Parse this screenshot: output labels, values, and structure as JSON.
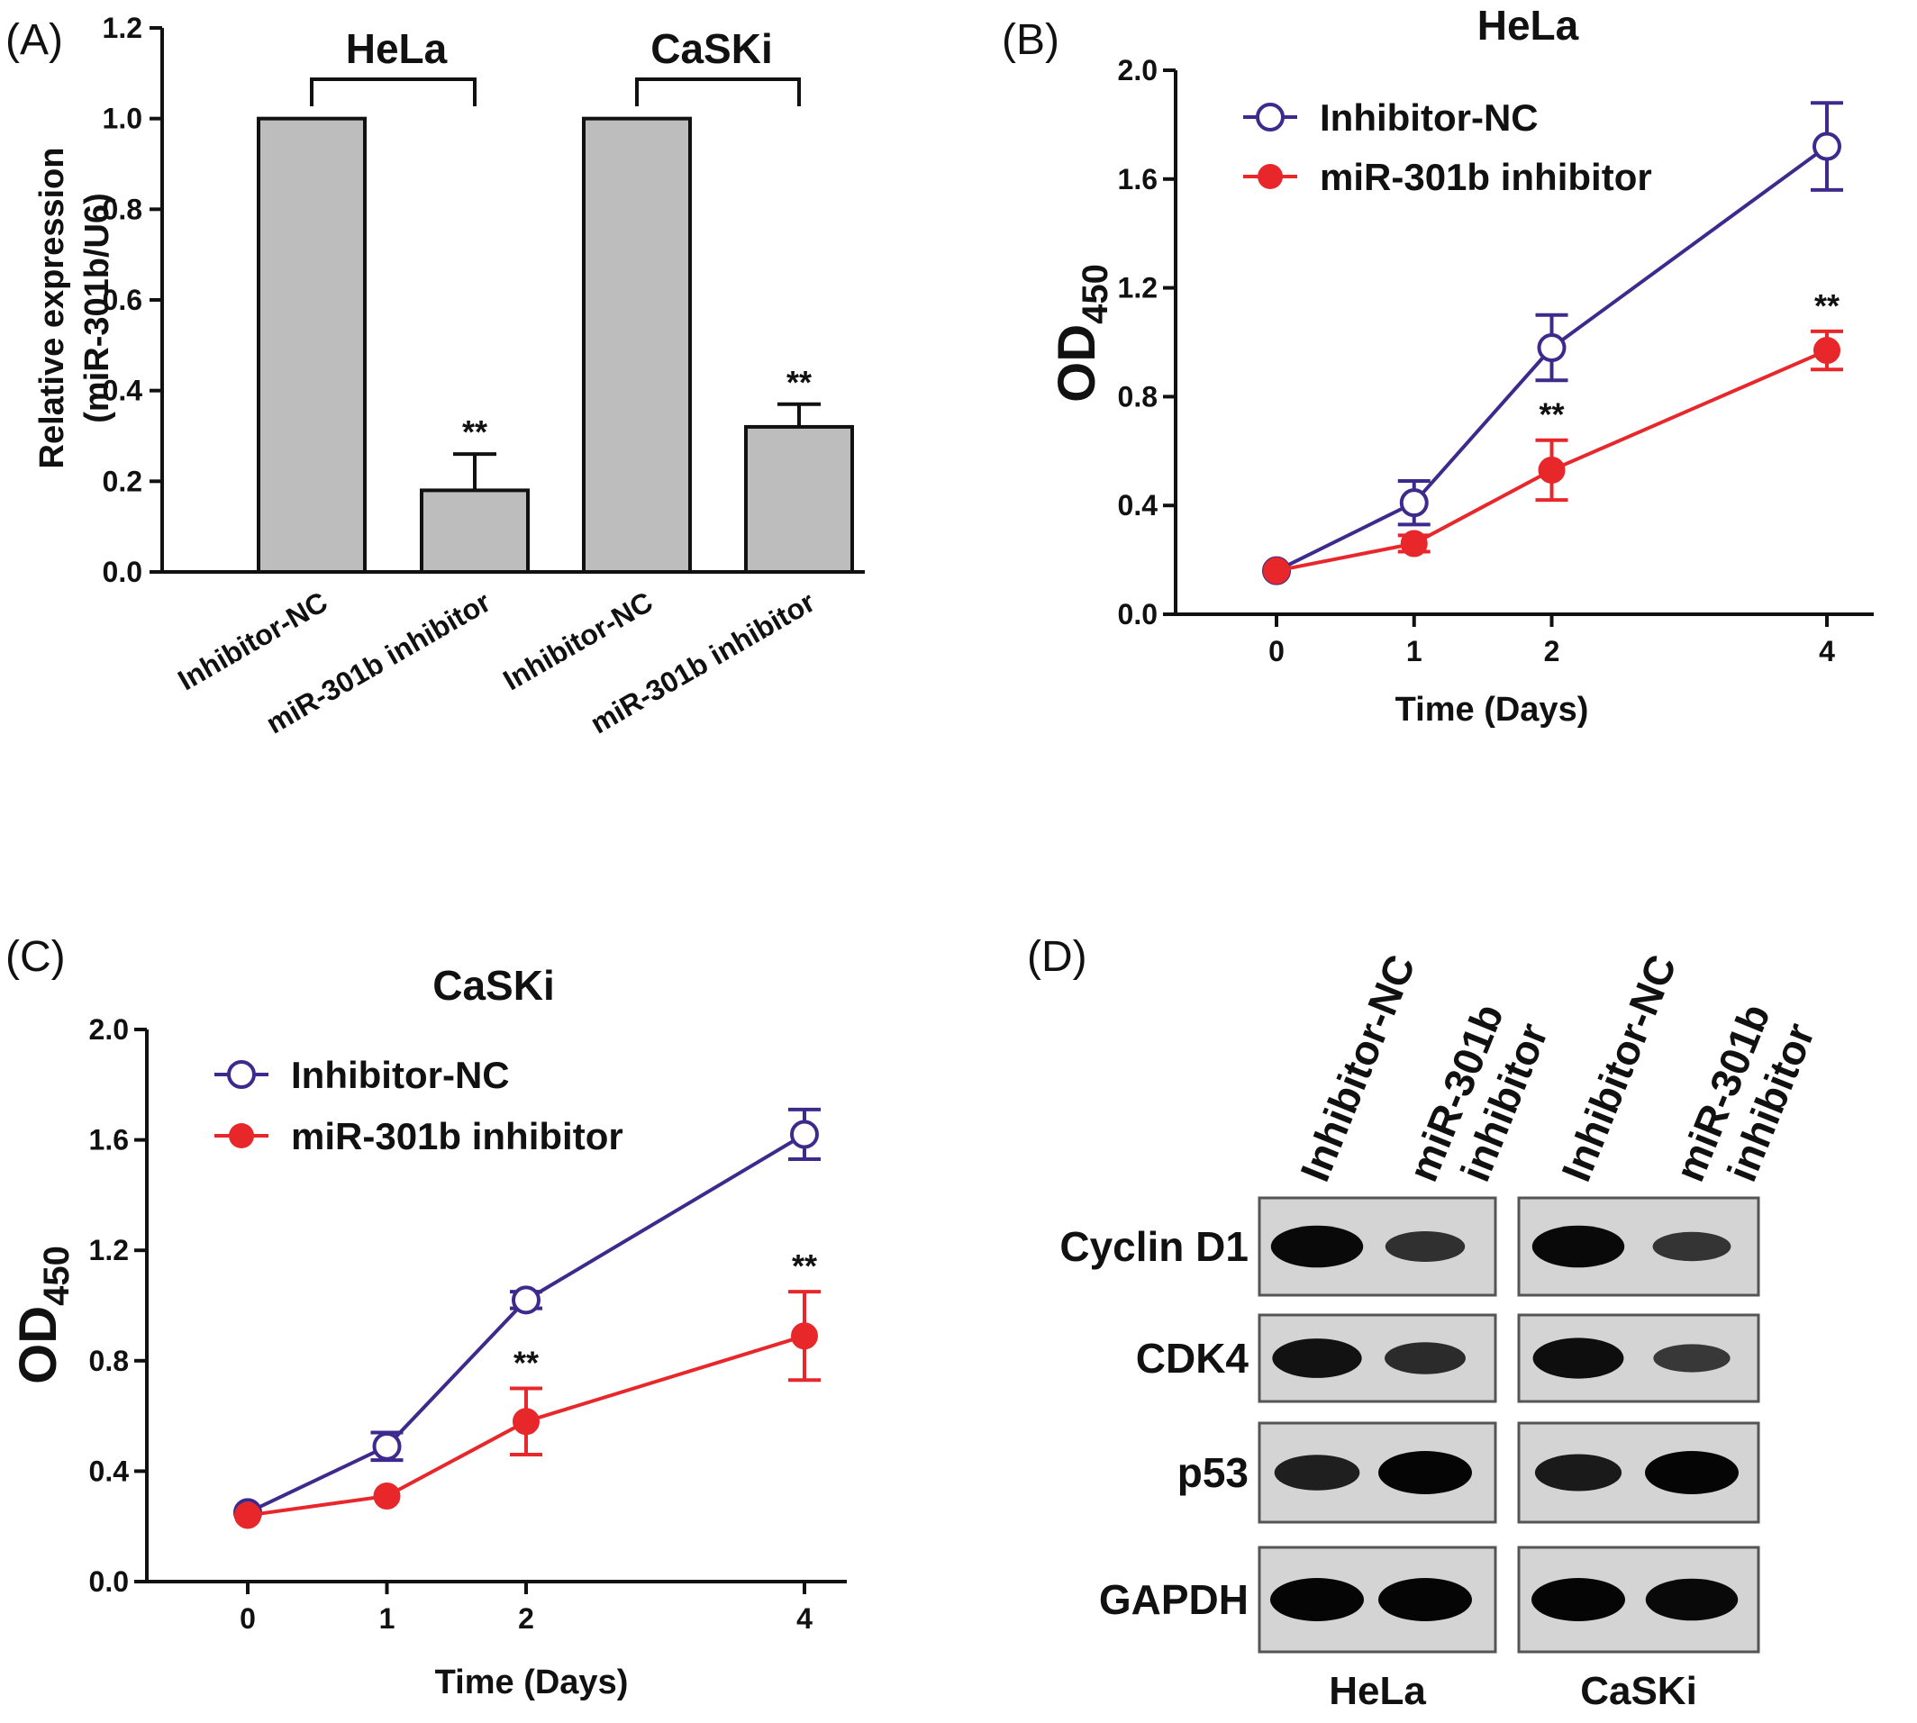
{
  "panels": {
    "a": "(A)",
    "b": "(B)",
    "c": "(C)",
    "d": "(D)"
  },
  "colors": {
    "bar_fill": "#bdbdbd",
    "nc_line": "#3d2a8c",
    "inhibitor_line": "#e8272b",
    "axis": "#111111"
  },
  "chart_data": [
    {
      "id": "A",
      "type": "bar",
      "title": "",
      "ylabel_line1": "Relative expression",
      "ylabel_line2": "(miR-301b/U6)",
      "ylim": [
        0,
        1.2
      ],
      "yticks": [
        "0.0",
        "0.2",
        "0.4",
        "0.6",
        "0.8",
        "1.0",
        "1.2"
      ],
      "categories": [
        "Inhibitor-NC",
        "miR-301b inhibitor",
        "Inhibitor-NC",
        "miR-301b inhibitor"
      ],
      "values": [
        1.0,
        0.18,
        1.0,
        0.32
      ],
      "errors": [
        0,
        0.08,
        0,
        0.05
      ],
      "significance": [
        "",
        "**",
        "",
        "**"
      ],
      "groups": [
        {
          "name": "HeLa",
          "members": [
            0,
            1
          ]
        },
        {
          "name": "CaSKi",
          "members": [
            2,
            3
          ]
        }
      ],
      "grid": false
    },
    {
      "id": "B",
      "type": "line",
      "title": "HeLa",
      "xlabel": "Time (Days)",
      "ylabel_main": "OD",
      "ylabel_sub": "450",
      "x": [
        "0",
        "1",
        "2",
        "4"
      ],
      "ylim": [
        0,
        2.0
      ],
      "yticks": [
        "0.0",
        "0.4",
        "0.8",
        "1.2",
        "1.6",
        "2.0"
      ],
      "series": [
        {
          "name": "Inhibitor-NC",
          "values": [
            0.16,
            0.41,
            0.98,
            1.72
          ],
          "errors": [
            0.02,
            0.08,
            0.12,
            0.16
          ],
          "marker": "open-circle"
        },
        {
          "name": "miR-301b inhibitor",
          "values": [
            0.16,
            0.26,
            0.53,
            0.97
          ],
          "errors": [
            0.02,
            0.03,
            0.11,
            0.07
          ],
          "marker": "filled-circle",
          "significance": [
            "",
            "",
            "**",
            "**"
          ]
        }
      ],
      "legend": "top-left",
      "grid": false
    },
    {
      "id": "C",
      "type": "line",
      "title": "CaSKi",
      "xlabel": "Time (Days)",
      "ylabel_main": "OD",
      "ylabel_sub": "450",
      "x": [
        "0",
        "1",
        "2",
        "4"
      ],
      "ylim": [
        0,
        2.0
      ],
      "yticks": [
        "0.0",
        "0.4",
        "0.8",
        "1.2",
        "1.6",
        "2.0"
      ],
      "series": [
        {
          "name": "Inhibitor-NC",
          "values": [
            0.25,
            0.49,
            1.02,
            1.62
          ],
          "errors": [
            0.02,
            0.05,
            0.03,
            0.09
          ],
          "marker": "open-circle"
        },
        {
          "name": "miR-301b inhibitor",
          "values": [
            0.24,
            0.31,
            0.58,
            0.89
          ],
          "errors": [
            0.02,
            0.02,
            0.12,
            0.16
          ],
          "marker": "filled-circle",
          "significance": [
            "",
            "",
            "**",
            "**"
          ]
        }
      ],
      "legend": "top-left",
      "grid": false
    }
  ],
  "western_blot": {
    "lane_labels": [
      {
        "line1": "Inhibitor-NC",
        "line2": ""
      },
      {
        "line1": "miR-301b",
        "line2": "inhibitor"
      },
      {
        "line1": "Inhibitor-NC",
        "line2": ""
      },
      {
        "line1": "miR-301b",
        "line2": "inhibitor"
      }
    ],
    "proteins": [
      "Cyclin D1",
      "CDK4",
      "p53",
      "GAPDH"
    ],
    "groups": [
      "HeLa",
      "CaSKi"
    ],
    "band_intensity": [
      [
        0.95,
        0.5,
        0.95,
        0.45
      ],
      [
        0.85,
        0.55,
        0.9,
        0.4
      ],
      [
        0.7,
        1.0,
        0.75,
        1.0
      ],
      [
        1.0,
        1.0,
        1.0,
        0.95
      ]
    ]
  }
}
